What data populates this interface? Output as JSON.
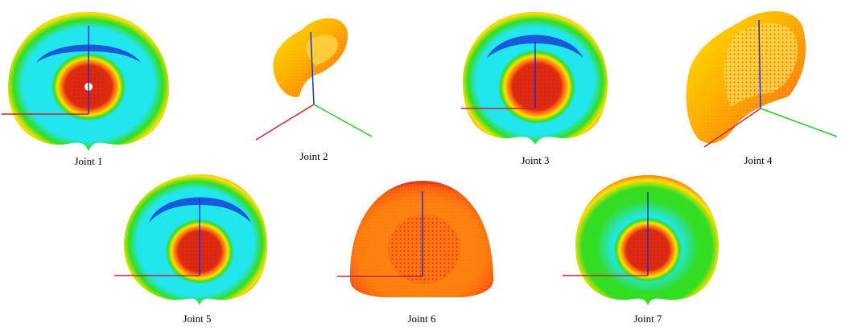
{
  "figure": {
    "panels": [
      {
        "id": "joint-1",
        "label": "Joint 1",
        "view": "front"
      },
      {
        "id": "joint-2",
        "label": "Joint 2",
        "view": "isometric"
      },
      {
        "id": "joint-3",
        "label": "Joint 3",
        "view": "front"
      },
      {
        "id": "joint-4",
        "label": "Joint 4",
        "view": "isometric"
      },
      {
        "id": "joint-5",
        "label": "Joint 5",
        "view": "front"
      },
      {
        "id": "joint-6",
        "label": "Joint 6",
        "view": "front-dome"
      },
      {
        "id": "joint-7",
        "label": "Joint 7",
        "view": "front"
      }
    ],
    "colors": {
      "outer_rim": "#e0251a",
      "orange": "#ff7a10",
      "yellow": "#ffe000",
      "green": "#33dd22",
      "cyan": "#22e6ee",
      "blue": "#1a3fd8",
      "core_red": "#dd2a10",
      "axis_x": "#cc2233",
      "axis_y": "#22cc22",
      "axis_z": "#1b2fd6"
    }
  }
}
